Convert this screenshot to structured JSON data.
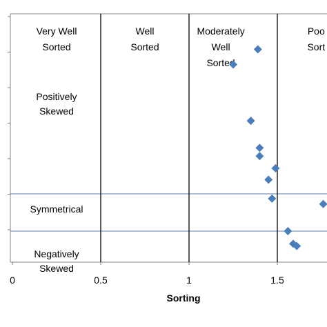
{
  "chart_data": {
    "type": "scatter",
    "title": "",
    "xlabel": "Sorting",
    "ylabel": "",
    "xlim": [
      0,
      1.75
    ],
    "ylim": [
      0,
      1
    ],
    "x_ticks": [
      "0",
      "0.5",
      "1",
      "1.5"
    ],
    "x_tick_values": [
      0,
      0.5,
      1,
      1.5
    ],
    "grid": false,
    "marker_color": "#4a7ebb",
    "sorting_boundaries": [
      0.5,
      1.0,
      1.5
    ],
    "skewness_boundaries": [
      0.275,
      0.125
    ],
    "sorting_classes": [
      {
        "line1": "Very Well",
        "line2": "Sorted",
        "x_center": 0.25
      },
      {
        "line1": "Well",
        "line2": "Sorted",
        "x_center": 0.75
      },
      {
        "line1": "Moderately",
        "line2": "Well",
        "line3": "Sorted",
        "x_center": 1.18
      },
      {
        "line1": "Poo",
        "line2": "Sort",
        "x_center": 1.72
      }
    ],
    "skewness_classes": [
      {
        "line1": "Positively",
        "line2": "Skewed",
        "y_center": 0.62
      },
      {
        "line1": "Symmetrical",
        "line2": "",
        "y_center": 0.2
      },
      {
        "line1": "Negatively",
        "line2": "Skewed",
        "y_center": 0.02
      }
    ],
    "points": [
      {
        "x": 1.39,
        "y": 0.857
      },
      {
        "x": 1.25,
        "y": 0.796
      },
      {
        "x": 1.35,
        "y": 0.569
      },
      {
        "x": 1.4,
        "y": 0.46
      },
      {
        "x": 1.4,
        "y": 0.427
      },
      {
        "x": 1.49,
        "y": 0.378
      },
      {
        "x": 1.45,
        "y": 0.332
      },
      {
        "x": 1.47,
        "y": 0.256
      },
      {
        "x": 1.76,
        "y": 0.234
      },
      {
        "x": 1.56,
        "y": 0.125
      },
      {
        "x": 1.59,
        "y": 0.074
      },
      {
        "x": 1.61,
        "y": 0.065
      }
    ]
  }
}
